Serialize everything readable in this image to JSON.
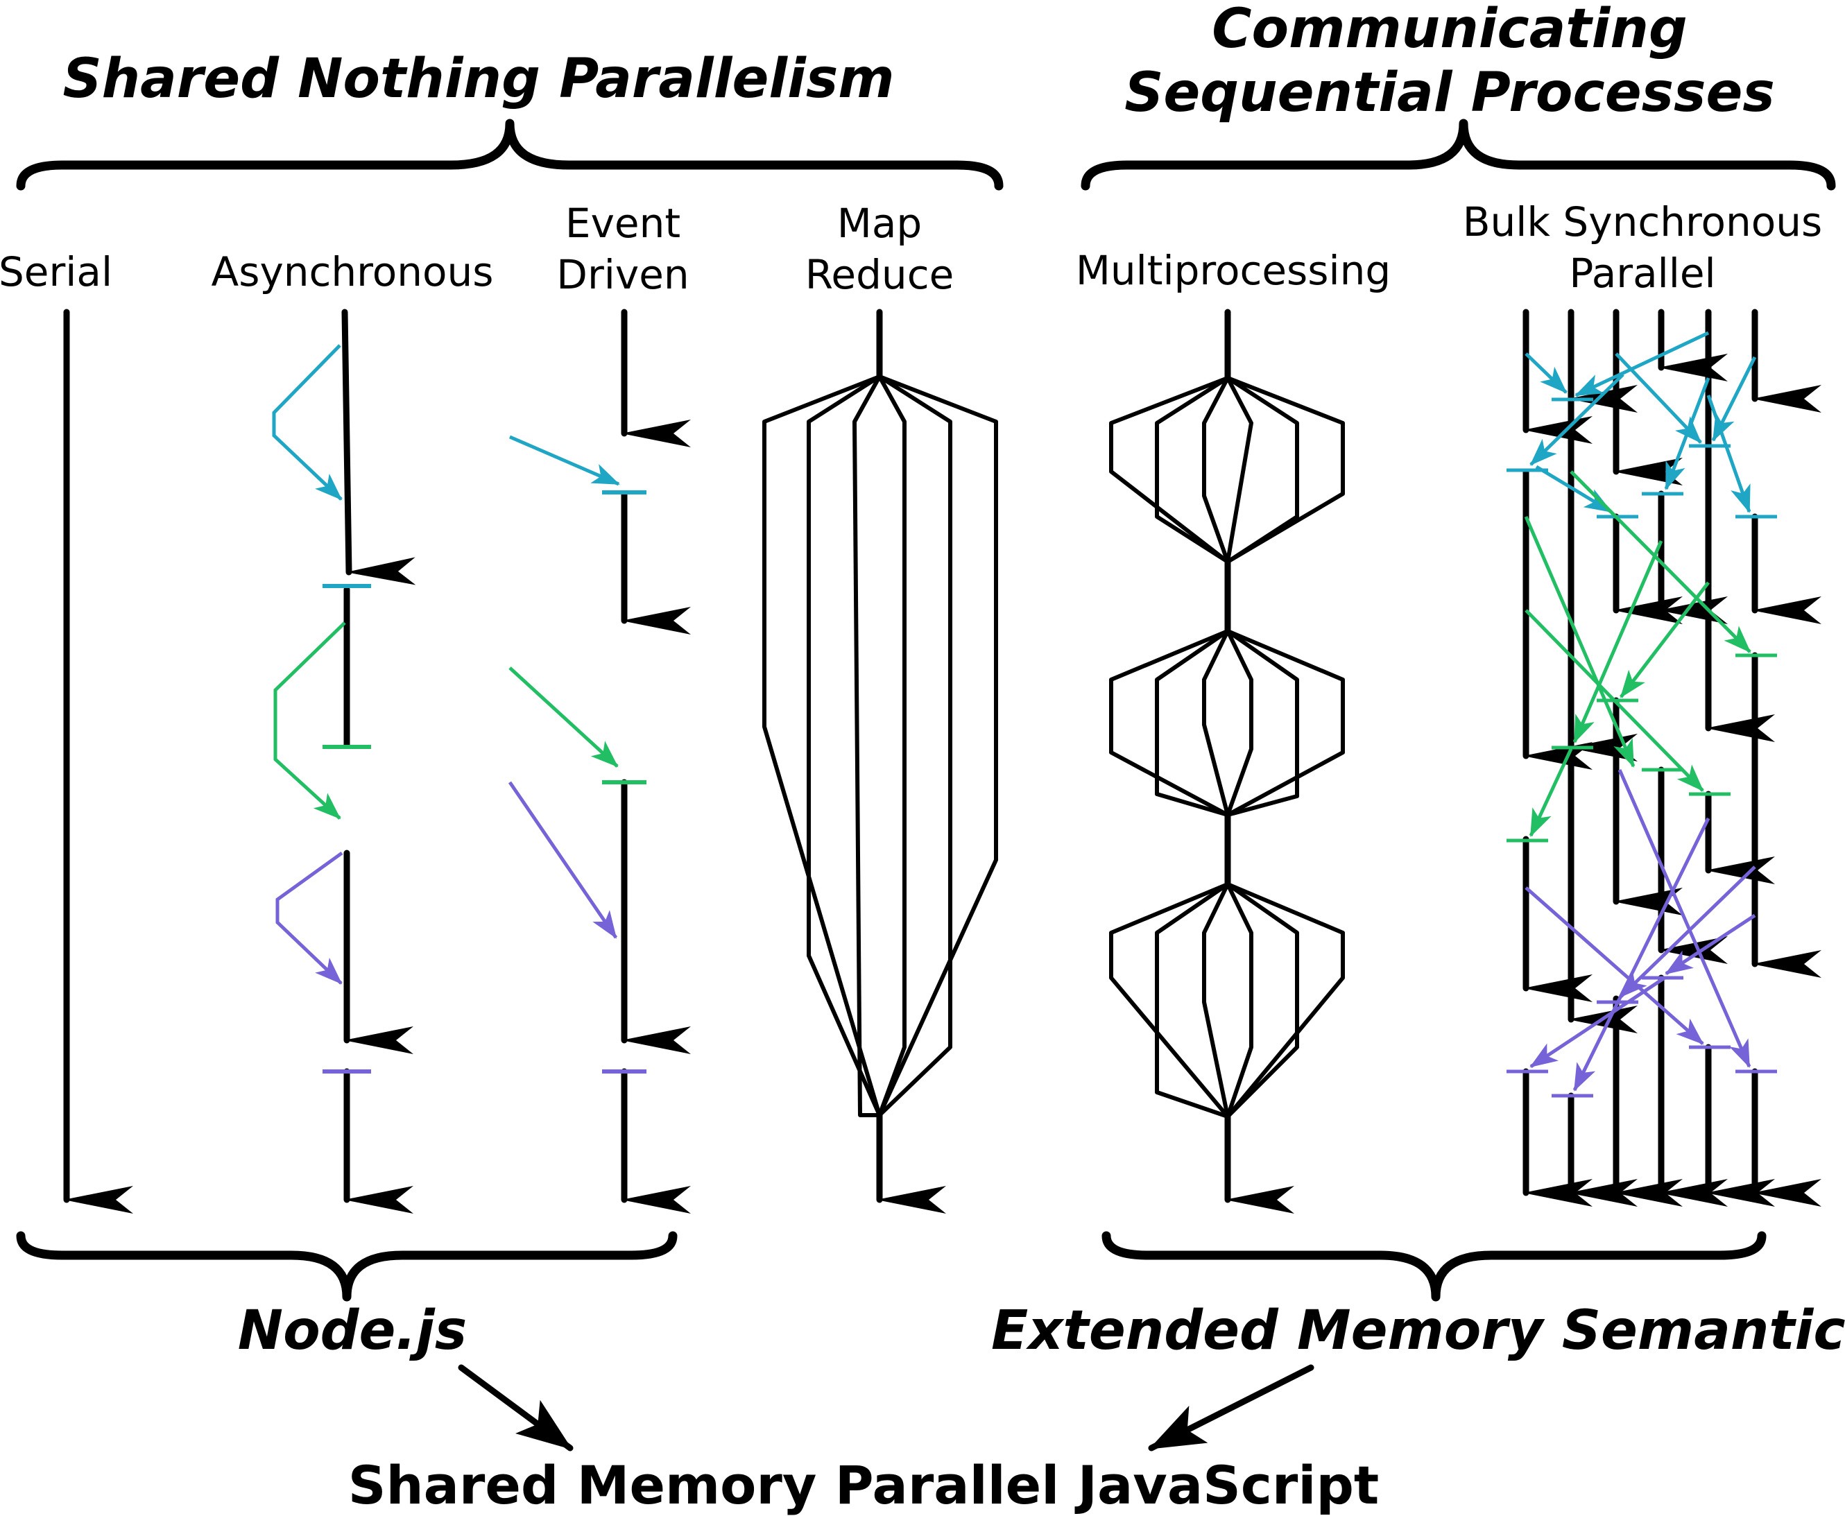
{
  "groups": {
    "shared_nothing": "Shared Nothing Parallelism",
    "csp_line1": "Communicating",
    "csp_line2": "Sequential Processes"
  },
  "models": {
    "serial": "Serial",
    "asynchronous": "Asynchronous",
    "event_driven_line1": "Event",
    "event_driven_line2": "Driven",
    "map_reduce_line1": "Map",
    "map_reduce_line2": "Reduce",
    "multiprocessing": "Multiprocessing",
    "bsp_line1": "Bulk Synchronous",
    "bsp_line2": "Parallel"
  },
  "bottom": {
    "nodejs": "Node.js",
    "ems": "Extended Memory Semantics",
    "result": "Shared Memory Parallel JavaScript"
  },
  "colors": {
    "cyan": "#1FA6C4",
    "green": "#21BE63",
    "purple": "#7763D8",
    "black": "#000000"
  }
}
